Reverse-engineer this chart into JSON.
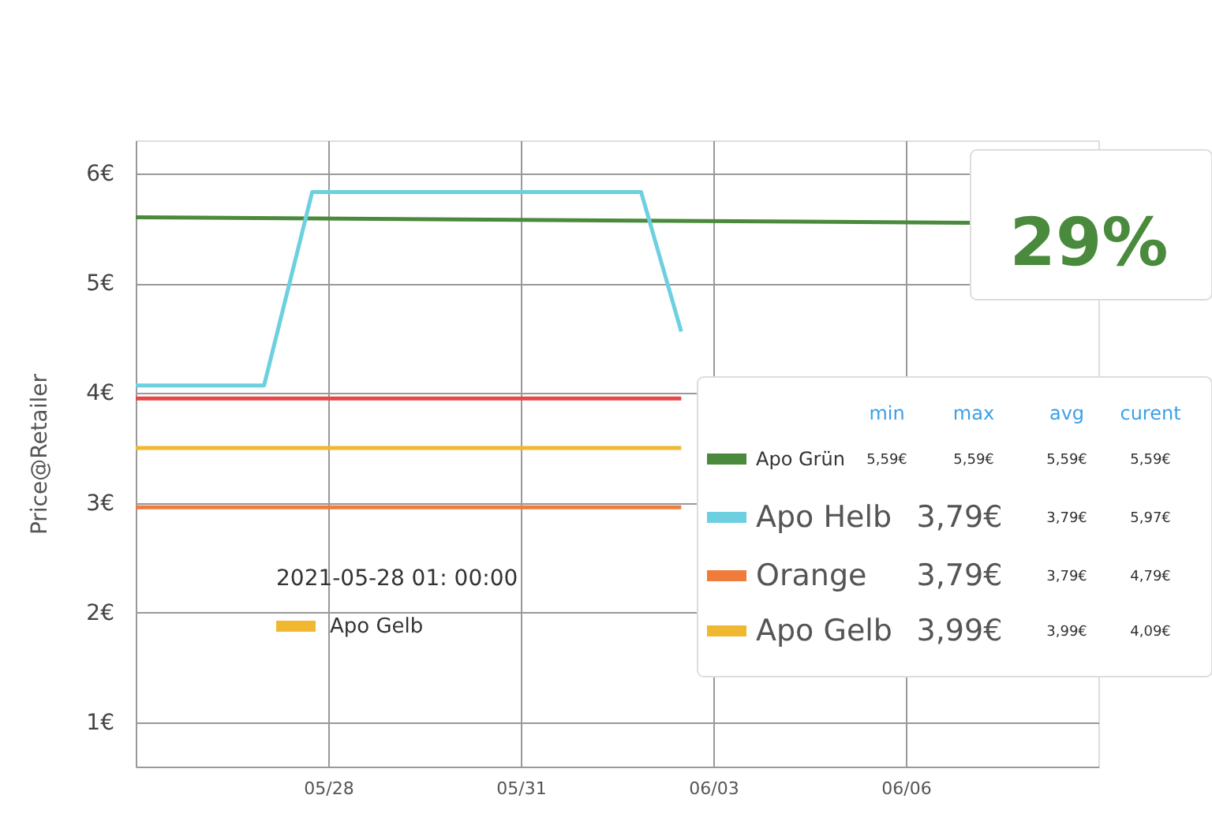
{
  "chart_data": {
    "type": "line",
    "ylabel": "Price@Retailer",
    "xlim": [
      "2021-05-25",
      "2021-06-09"
    ],
    "ylim": [
      0.6,
      6.3
    ],
    "xticks": [
      {
        "value": "2021-05-28",
        "label": "05/28"
      },
      {
        "value": "2021-05-31",
        "label": "05/31"
      },
      {
        "value": "2021-06-03",
        "label": "06/03"
      },
      {
        "value": "2021-06-06",
        "label": "06/06"
      }
    ],
    "yticks": [
      {
        "value": 1,
        "label": "1€"
      },
      {
        "value": 2,
        "label": "2€"
      },
      {
        "value": 3,
        "label": "3€"
      },
      {
        "value": 4,
        "label": "4€"
      },
      {
        "value": 5,
        "label": "5€"
      },
      {
        "value": 6,
        "label": "6€"
      }
    ],
    "grid": true,
    "legend": "right",
    "series": [
      {
        "name": "Apo Grün",
        "color": "#4a8a3c",
        "x": [
          "2021-05-25",
          "2021-06-07"
        ],
        "values": [
          5.6,
          5.55
        ]
      },
      {
        "name": "Apo Helb",
        "color": "#6dd0e0",
        "x": [
          "2021-05-25",
          "2021-05-27",
          "2021-05-27T18:00",
          "2021-06-01T21:00",
          "2021-06-02T12:00"
        ],
        "values": [
          4.07,
          4.07,
          5.83,
          5.83,
          4.56
        ]
      },
      {
        "name": "Orange",
        "color": "#f07c3c",
        "x": [
          "2021-05-25",
          "2021-06-02T12:00"
        ],
        "values": [
          2.96,
          2.96
        ]
      },
      {
        "name": "Apo Gelb",
        "color": "#f0b830",
        "x": [
          "2021-05-25",
          "2021-06-02T12:00"
        ],
        "values": [
          3.5,
          3.5
        ]
      },
      {
        "color": "#e8474a",
        "x": [
          "2021-05-25",
          "2021-06-02T12:00"
        ],
        "values": [
          3.95,
          3.95
        ]
      }
    ],
    "annotations": [
      "29%",
      "2021-05-28 01: 00:00",
      "Apo Gelb",
      "min",
      "max",
      "avg",
      "curent",
      "5,59€",
      "5,59€",
      "5,59€",
      "5,59€",
      "3,79€",
      "3,79€",
      "5,97€",
      "3,79€",
      "3,79€",
      "4,79€",
      "3,99€",
      "3,99€",
      "4,09€"
    ]
  }
}
